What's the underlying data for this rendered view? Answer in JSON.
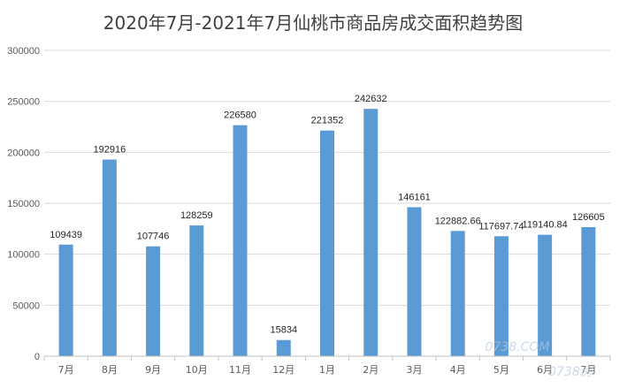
{
  "chart_data": {
    "type": "bar",
    "title": "2020年7月-2021年7月仙桃市商品房成交面积趋势图",
    "xlabel": "",
    "ylabel": "",
    "categories": [
      "7月",
      "8月",
      "9月",
      "10月",
      "11月",
      "12月",
      "1月",
      "2月",
      "3月",
      "4月",
      "5月",
      "6月",
      "7月"
    ],
    "values": [
      109439,
      192916,
      107746,
      128259,
      226580,
      15834,
      221352,
      242632,
      146161,
      122882.66,
      117697.74,
      119140.84,
      126605
    ],
    "data_labels": [
      "109439",
      "192916",
      "107746",
      "128259",
      "226580",
      "15834",
      "221352",
      "242632",
      "146161",
      "122882.66",
      "117697.74",
      "119140.84",
      "126605"
    ],
    "ylim": [
      0,
      300000
    ],
    "yticks": [
      0,
      50000,
      100000,
      150000,
      200000,
      250000,
      300000
    ],
    "grid": true,
    "legend": "none",
    "bar_color": "#5b9bd5",
    "grid_color": "#d9d9d9"
  },
  "watermark": {
    "site": "0738.COM",
    "logo_text": "0738房"
  }
}
